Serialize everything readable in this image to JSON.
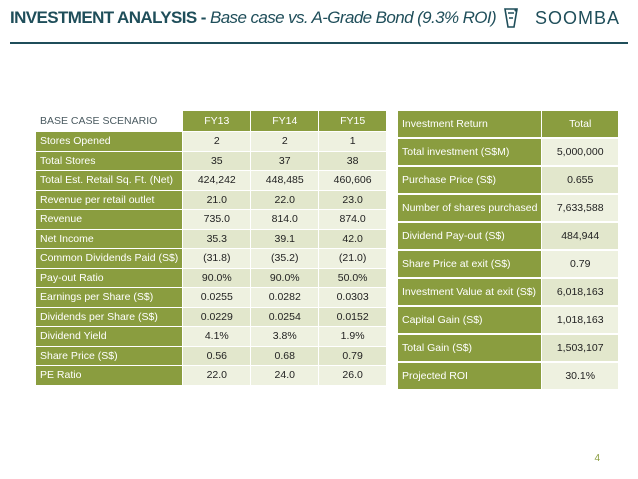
{
  "header": {
    "title_bold": "INVESTMENT ANALYSIS - ",
    "title_italic": "Base case vs. A-Grade Bond (9.3% ROI)",
    "logo_text": "SOOMBA"
  },
  "base_case": {
    "label_header": "BASE CASE SCENARIO",
    "columns": [
      "FY13",
      "FY14",
      "FY15"
    ],
    "rows": [
      {
        "label": "Stores Opened",
        "values": [
          "2",
          "2",
          "1"
        ]
      },
      {
        "label": "Total Stores",
        "values": [
          "35",
          "37",
          "38"
        ]
      },
      {
        "label": "Total Est. Retail Sq. Ft. (Net)",
        "values": [
          "424,242",
          "448,485",
          "460,606"
        ]
      },
      {
        "label": "Revenue per retail outlet",
        "values": [
          "21.0",
          "22.0",
          "23.0"
        ]
      },
      {
        "label": "Revenue",
        "values": [
          "735.0",
          "814.0",
          "874.0"
        ]
      },
      {
        "label": " Net Income",
        "values": [
          "35.3",
          "39.1",
          "42.0"
        ]
      },
      {
        "label": "Common Dividends Paid (S$)",
        "values": [
          "(31.8)",
          "(35.2)",
          "(21.0)"
        ]
      },
      {
        "label": "Pay-out Ratio",
        "values": [
          "90.0%",
          "90.0%",
          "50.0%"
        ]
      },
      {
        "label": "Earnings per Share (S$)",
        "values": [
          "0.0255",
          "0.0282",
          "0.0303"
        ]
      },
      {
        "label": "Dividends per Share (S$)",
        "values": [
          "0.0229",
          "0.0254",
          "0.0152"
        ]
      },
      {
        "label": "Dividend Yield",
        "values": [
          "4.1%",
          "3.8%",
          "1.9%"
        ]
      },
      {
        "label": "Share Price (S$)",
        "values": [
          "0.56",
          "0.68",
          "0.79"
        ]
      },
      {
        "label": "PE Ratio",
        "values": [
          "22.0",
          "24.0",
          "26.0"
        ]
      }
    ]
  },
  "investment_return": {
    "label_header": "Investment Return",
    "value_header": "Total",
    "rows": [
      {
        "label": "Total investment (S$M)",
        "value": "5,000,000"
      },
      {
        "label": "Purchase Price (S$)",
        "value": "0.655"
      },
      {
        "label": "Number of shares purchased",
        "value": "7,633,588"
      },
      {
        "label": "Dividend Pay-out (S$)",
        "value": "484,944"
      },
      {
        "label": "Share Price at exit (S$)",
        "value": "0.79"
      },
      {
        "label": "Investment Value at exit (S$)",
        "value": "6,018,163"
      },
      {
        "label": "Capital Gain (S$)",
        "value": "1,018,163"
      },
      {
        "label": "Total Gain (S$)",
        "value": "1,503,107"
      },
      {
        "label": "Projected ROI",
        "value": "30.1%"
      }
    ]
  },
  "page_number": "4"
}
